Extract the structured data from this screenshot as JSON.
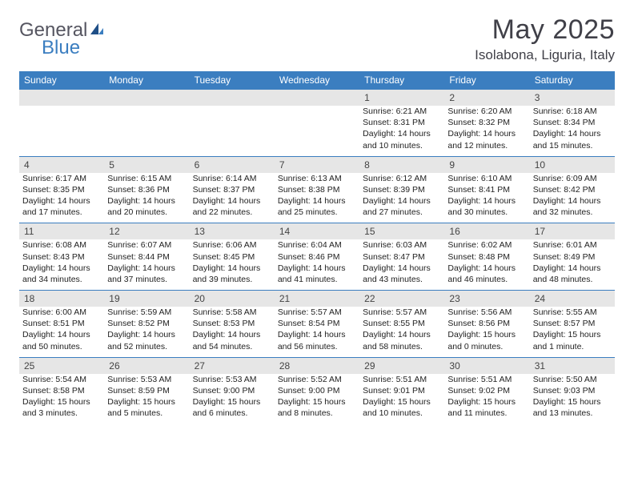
{
  "logo": {
    "part1": "General",
    "part2": "Blue"
  },
  "title": "May 2025",
  "location": "Isolabona, Liguria, Italy",
  "colors": {
    "header_bg": "#3b7ec0",
    "header_text": "#ffffff",
    "band_bg": "#e6e6e6",
    "border": "#3b7ec0",
    "body_text": "#222222",
    "title_text": "#404048",
    "logo_gray": "#555560",
    "logo_blue": "#3b7ec0",
    "page_bg": "#ffffff"
  },
  "day_names": [
    "Sunday",
    "Monday",
    "Tuesday",
    "Wednesday",
    "Thursday",
    "Friday",
    "Saturday"
  ],
  "weeks": [
    [
      null,
      null,
      null,
      null,
      {
        "n": "1",
        "sunrise": "6:21 AM",
        "sunset": "8:31 PM",
        "daylight": "14 hours and 10 minutes."
      },
      {
        "n": "2",
        "sunrise": "6:20 AM",
        "sunset": "8:32 PM",
        "daylight": "14 hours and 12 minutes."
      },
      {
        "n": "3",
        "sunrise": "6:18 AM",
        "sunset": "8:34 PM",
        "daylight": "14 hours and 15 minutes."
      }
    ],
    [
      {
        "n": "4",
        "sunrise": "6:17 AM",
        "sunset": "8:35 PM",
        "daylight": "14 hours and 17 minutes."
      },
      {
        "n": "5",
        "sunrise": "6:15 AM",
        "sunset": "8:36 PM",
        "daylight": "14 hours and 20 minutes."
      },
      {
        "n": "6",
        "sunrise": "6:14 AM",
        "sunset": "8:37 PM",
        "daylight": "14 hours and 22 minutes."
      },
      {
        "n": "7",
        "sunrise": "6:13 AM",
        "sunset": "8:38 PM",
        "daylight": "14 hours and 25 minutes."
      },
      {
        "n": "8",
        "sunrise": "6:12 AM",
        "sunset": "8:39 PM",
        "daylight": "14 hours and 27 minutes."
      },
      {
        "n": "9",
        "sunrise": "6:10 AM",
        "sunset": "8:41 PM",
        "daylight": "14 hours and 30 minutes."
      },
      {
        "n": "10",
        "sunrise": "6:09 AM",
        "sunset": "8:42 PM",
        "daylight": "14 hours and 32 minutes."
      }
    ],
    [
      {
        "n": "11",
        "sunrise": "6:08 AM",
        "sunset": "8:43 PM",
        "daylight": "14 hours and 34 minutes."
      },
      {
        "n": "12",
        "sunrise": "6:07 AM",
        "sunset": "8:44 PM",
        "daylight": "14 hours and 37 minutes."
      },
      {
        "n": "13",
        "sunrise": "6:06 AM",
        "sunset": "8:45 PM",
        "daylight": "14 hours and 39 minutes."
      },
      {
        "n": "14",
        "sunrise": "6:04 AM",
        "sunset": "8:46 PM",
        "daylight": "14 hours and 41 minutes."
      },
      {
        "n": "15",
        "sunrise": "6:03 AM",
        "sunset": "8:47 PM",
        "daylight": "14 hours and 43 minutes."
      },
      {
        "n": "16",
        "sunrise": "6:02 AM",
        "sunset": "8:48 PM",
        "daylight": "14 hours and 46 minutes."
      },
      {
        "n": "17",
        "sunrise": "6:01 AM",
        "sunset": "8:49 PM",
        "daylight": "14 hours and 48 minutes."
      }
    ],
    [
      {
        "n": "18",
        "sunrise": "6:00 AM",
        "sunset": "8:51 PM",
        "daylight": "14 hours and 50 minutes."
      },
      {
        "n": "19",
        "sunrise": "5:59 AM",
        "sunset": "8:52 PM",
        "daylight": "14 hours and 52 minutes."
      },
      {
        "n": "20",
        "sunrise": "5:58 AM",
        "sunset": "8:53 PM",
        "daylight": "14 hours and 54 minutes."
      },
      {
        "n": "21",
        "sunrise": "5:57 AM",
        "sunset": "8:54 PM",
        "daylight": "14 hours and 56 minutes."
      },
      {
        "n": "22",
        "sunrise": "5:57 AM",
        "sunset": "8:55 PM",
        "daylight": "14 hours and 58 minutes."
      },
      {
        "n": "23",
        "sunrise": "5:56 AM",
        "sunset": "8:56 PM",
        "daylight": "15 hours and 0 minutes."
      },
      {
        "n": "24",
        "sunrise": "5:55 AM",
        "sunset": "8:57 PM",
        "daylight": "15 hours and 1 minute."
      }
    ],
    [
      {
        "n": "25",
        "sunrise": "5:54 AM",
        "sunset": "8:58 PM",
        "daylight": "15 hours and 3 minutes."
      },
      {
        "n": "26",
        "sunrise": "5:53 AM",
        "sunset": "8:59 PM",
        "daylight": "15 hours and 5 minutes."
      },
      {
        "n": "27",
        "sunrise": "5:53 AM",
        "sunset": "9:00 PM",
        "daylight": "15 hours and 6 minutes."
      },
      {
        "n": "28",
        "sunrise": "5:52 AM",
        "sunset": "9:00 PM",
        "daylight": "15 hours and 8 minutes."
      },
      {
        "n": "29",
        "sunrise": "5:51 AM",
        "sunset": "9:01 PM",
        "daylight": "15 hours and 10 minutes."
      },
      {
        "n": "30",
        "sunrise": "5:51 AM",
        "sunset": "9:02 PM",
        "daylight": "15 hours and 11 minutes."
      },
      {
        "n": "31",
        "sunrise": "5:50 AM",
        "sunset": "9:03 PM",
        "daylight": "15 hours and 13 minutes."
      }
    ]
  ],
  "labels": {
    "sunrise": "Sunrise:",
    "sunset": "Sunset:",
    "daylight": "Daylight:"
  },
  "typography": {
    "title_fontsize": 34,
    "location_fontsize": 17,
    "dow_fontsize": 12,
    "daynum_fontsize": 12,
    "cell_fontsize": 10.5
  }
}
